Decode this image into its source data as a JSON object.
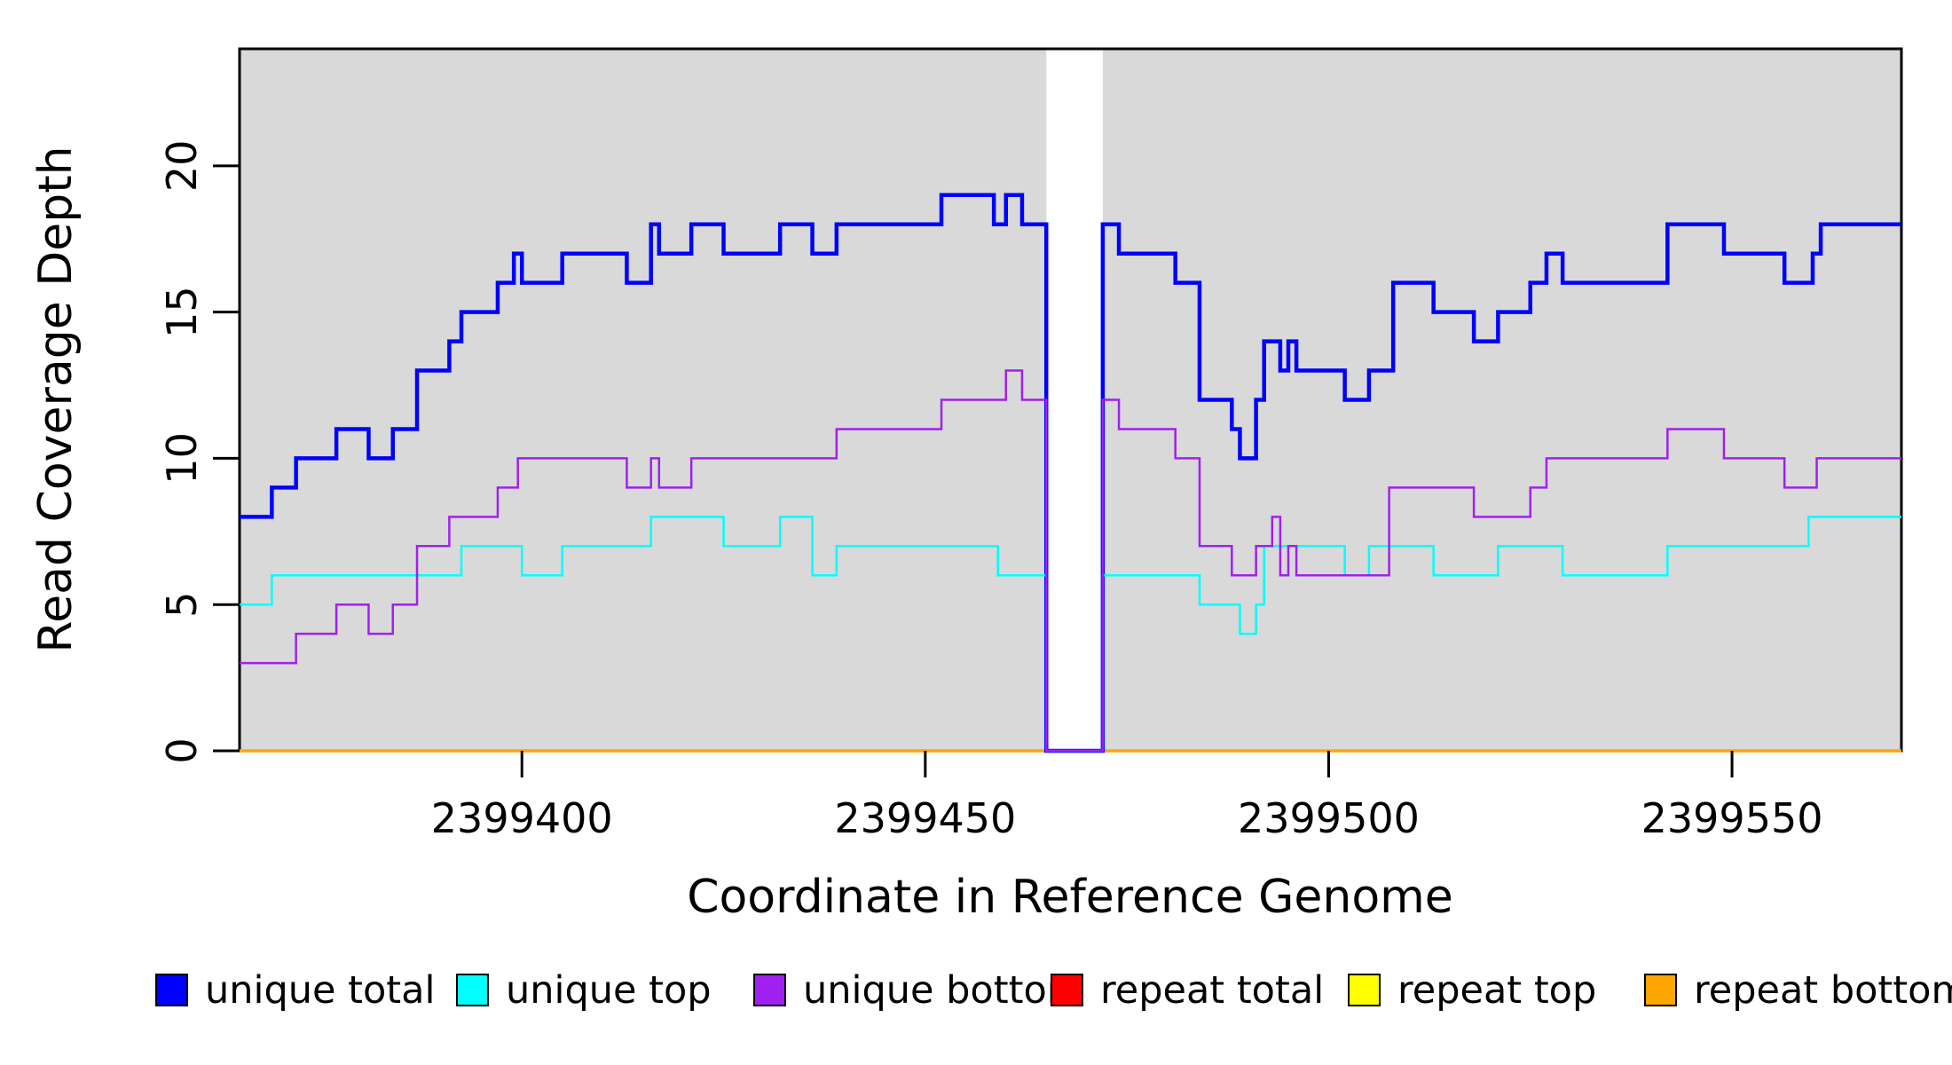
{
  "figure": {
    "background_color": "#FFFFFF",
    "plot_background_color": "#D9D9D9",
    "axis_color": "#000000"
  },
  "chart_data": {
    "type": "line",
    "subtype": "step",
    "title": "",
    "xlabel": "Coordinate in Reference Genome",
    "ylabel": "Read Coverage Depth",
    "xlim": [
      2399365,
      2399571
    ],
    "ylim": [
      0,
      24
    ],
    "x_ticks": [
      2399400,
      2399450,
      2399500,
      2399550
    ],
    "y_ticks": [
      0,
      5,
      10,
      15,
      20
    ],
    "grid": false,
    "legend_position": "bottom",
    "zero_coverage_gap": {
      "x_start": 2399465,
      "x_end": 2399472,
      "fill": "#FFFFFF"
    },
    "series": [
      {
        "name": "repeat total",
        "color": "#FF0000",
        "line_width": 2.5,
        "steps": [
          [
            2399365,
            0
          ],
          [
            2399571,
            0
          ]
        ]
      },
      {
        "name": "repeat top",
        "color": "#FFFF00",
        "line_width": 2.5,
        "steps": [
          [
            2399365,
            0
          ],
          [
            2399571,
            0
          ]
        ]
      },
      {
        "name": "repeat bottom",
        "color": "#FFA500",
        "line_width": 3.5,
        "steps": [
          [
            2399365,
            0
          ],
          [
            2399571,
            0
          ]
        ]
      },
      {
        "name": "unique total",
        "color": "#0000FF",
        "line_width": 4.5,
        "steps": [
          [
            2399365,
            8
          ],
          [
            2399369,
            9
          ],
          [
            2399372,
            10
          ],
          [
            2399377,
            11
          ],
          [
            2399381,
            10
          ],
          [
            2399384,
            11
          ],
          [
            2399387,
            13
          ],
          [
            2399391,
            14
          ],
          [
            2399392.5,
            15
          ],
          [
            2399397,
            16
          ],
          [
            2399399,
            17
          ],
          [
            2399400,
            16
          ],
          [
            2399405,
            17
          ],
          [
            2399413,
            16
          ],
          [
            2399416,
            18
          ],
          [
            2399417,
            17
          ],
          [
            2399421,
            18
          ],
          [
            2399425,
            17
          ],
          [
            2399432,
            18
          ],
          [
            2399436,
            17
          ],
          [
            2399439,
            18
          ],
          [
            2399452,
            19
          ],
          [
            2399458.5,
            18
          ],
          [
            2399460,
            19
          ],
          [
            2399462,
            18
          ],
          [
            2399465,
            0
          ],
          [
            2399472,
            18
          ],
          [
            2399474,
            17
          ],
          [
            2399481,
            16
          ],
          [
            2399484,
            12
          ],
          [
            2399488,
            11
          ],
          [
            2399489,
            10
          ],
          [
            2399491,
            12
          ],
          [
            2399492,
            14
          ],
          [
            2399494,
            13
          ],
          [
            2399495,
            14
          ],
          [
            2399496,
            13
          ],
          [
            2399502,
            12
          ],
          [
            2399505,
            13
          ],
          [
            2399508,
            16
          ],
          [
            2399513,
            15
          ],
          [
            2399518,
            14
          ],
          [
            2399521,
            15
          ],
          [
            2399525,
            16
          ],
          [
            2399527,
            17
          ],
          [
            2399529,
            16
          ],
          [
            2399542,
            18
          ],
          [
            2399549,
            17
          ],
          [
            2399556.5,
            16
          ],
          [
            2399560,
            17
          ],
          [
            2399561,
            18
          ],
          [
            2399571,
            18
          ]
        ]
      },
      {
        "name": "unique top",
        "color": "#00FFFF",
        "line_width": 2.5,
        "steps": [
          [
            2399365,
            5
          ],
          [
            2399369,
            6
          ],
          [
            2399392.5,
            7
          ],
          [
            2399400,
            6
          ],
          [
            2399405,
            7
          ],
          [
            2399416,
            8
          ],
          [
            2399425,
            7
          ],
          [
            2399432,
            8
          ],
          [
            2399436,
            6
          ],
          [
            2399439,
            7
          ],
          [
            2399459,
            6
          ],
          [
            2399465,
            0
          ],
          [
            2399472,
            6
          ],
          [
            2399484,
            5
          ],
          [
            2399489,
            4
          ],
          [
            2399491,
            5
          ],
          [
            2399492,
            7
          ],
          [
            2399502,
            6
          ],
          [
            2399505,
            7
          ],
          [
            2399513,
            6
          ],
          [
            2399521,
            7
          ],
          [
            2399529,
            6
          ],
          [
            2399542,
            7
          ],
          [
            2399559.5,
            8
          ],
          [
            2399571,
            8
          ]
        ]
      },
      {
        "name": "unique bottom",
        "color": "#A020F0",
        "line_width": 2.5,
        "steps": [
          [
            2399365,
            3
          ],
          [
            2399372,
            4
          ],
          [
            2399377,
            5
          ],
          [
            2399381,
            4
          ],
          [
            2399384,
            5
          ],
          [
            2399387,
            7
          ],
          [
            2399391,
            8
          ],
          [
            2399397,
            9
          ],
          [
            2399399.5,
            10
          ],
          [
            2399413,
            9
          ],
          [
            2399416,
            10
          ],
          [
            2399417,
            9
          ],
          [
            2399421,
            10
          ],
          [
            2399439,
            11
          ],
          [
            2399452,
            12
          ],
          [
            2399460,
            13
          ],
          [
            2399462,
            12
          ],
          [
            2399465,
            0
          ],
          [
            2399472,
            12
          ],
          [
            2399474,
            11
          ],
          [
            2399481,
            10
          ],
          [
            2399484,
            7
          ],
          [
            2399488,
            6
          ],
          [
            2399491,
            7
          ],
          [
            2399493,
            8
          ],
          [
            2399494,
            6
          ],
          [
            2399495,
            7
          ],
          [
            2399496,
            6
          ],
          [
            2399507.5,
            9
          ],
          [
            2399518,
            8
          ],
          [
            2399525,
            9
          ],
          [
            2399527,
            10
          ],
          [
            2399542,
            11
          ],
          [
            2399549,
            10
          ],
          [
            2399556.5,
            9
          ],
          [
            2399560.5,
            10
          ],
          [
            2399571,
            10
          ]
        ]
      }
    ],
    "legend": [
      {
        "label": "unique total",
        "color": "#0000FF",
        "border": "#000000"
      },
      {
        "label": "unique top",
        "color": "#00FFFF",
        "border": "#000000"
      },
      {
        "label": "unique bottom",
        "color": "#A020F0",
        "border": "#000000"
      },
      {
        "label": "repeat total",
        "color": "#FF0000",
        "border": "#000000"
      },
      {
        "label": "repeat top",
        "color": "#FFFF00",
        "border": "#000000"
      },
      {
        "label": "repeat bottom",
        "color": "#FFA500",
        "border": "#000000"
      }
    ]
  }
}
